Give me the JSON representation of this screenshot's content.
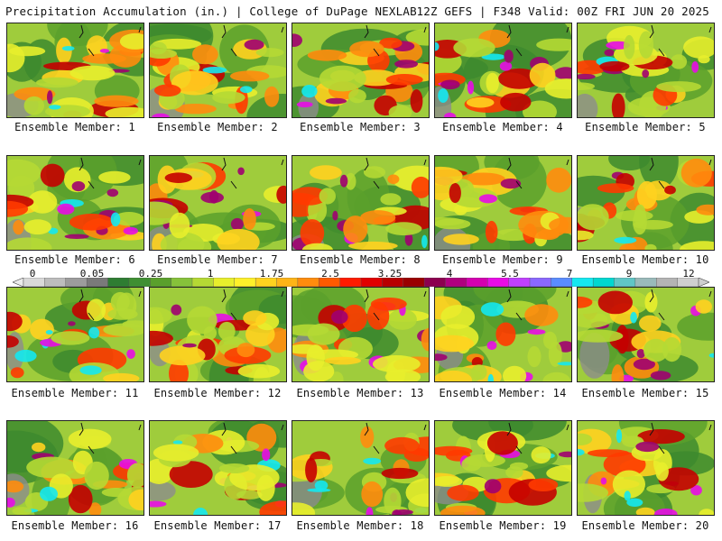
{
  "header": {
    "title": "Precipitation Accumulation (in.) | College of DuPage NEXLAB",
    "run_info": "12Z GEFS | F348 Valid: 00Z FRI JUN 20 2025"
  },
  "panels": [
    {
      "label": "Ensemble Member: 1"
    },
    {
      "label": "Ensemble Member: 2"
    },
    {
      "label": "Ensemble Member: 3"
    },
    {
      "label": "Ensemble Member: 4"
    },
    {
      "label": "Ensemble Member: 5"
    },
    {
      "label": "Ensemble Member: 6"
    },
    {
      "label": "Ensemble Member: 7"
    },
    {
      "label": "Ensemble Member: 8"
    },
    {
      "label": "Ensemble Member: 9"
    },
    {
      "label": "Ensemble Member: 10"
    },
    {
      "label": "Ensemble Member: 11"
    },
    {
      "label": "Ensemble Member: 12"
    },
    {
      "label": "Ensemble Member: 13"
    },
    {
      "label": "Ensemble Member: 14"
    },
    {
      "label": "Ensemble Member: 15"
    },
    {
      "label": "Ensemble Member: 16"
    },
    {
      "label": "Ensemble Member: 17"
    },
    {
      "label": "Ensemble Member: 18"
    },
    {
      "label": "Ensemble Member: 19"
    },
    {
      "label": "Ensemble Member: 20"
    }
  ],
  "colorbar": {
    "tick_labels": [
      "0",
      "0.05",
      "0.25",
      "1",
      "1.75",
      "2.5",
      "3.25",
      "4",
      "5.5",
      "7",
      "9",
      "12"
    ],
    "colors": [
      "#d9d9d9",
      "#bdbdbd",
      "#9c9c9c",
      "#7a7a7a",
      "#2e7d32",
      "#3f8f32",
      "#5aa02c",
      "#86c23a",
      "#b5d934",
      "#e8ee2c",
      "#fff02a",
      "#ffd21f",
      "#ffb417",
      "#ff8c0d",
      "#ff5a00",
      "#ff1a00",
      "#e00000",
      "#b80000",
      "#9a0000",
      "#8c004f",
      "#b0007f",
      "#d400b0",
      "#e80ce6",
      "#c040ff",
      "#8a68ff",
      "#5a8cff",
      "#14e8f0",
      "#00d7d0",
      "#60c6c6",
      "#9ababa",
      "#b4b4b4",
      "#cfcfcf"
    ]
  }
}
